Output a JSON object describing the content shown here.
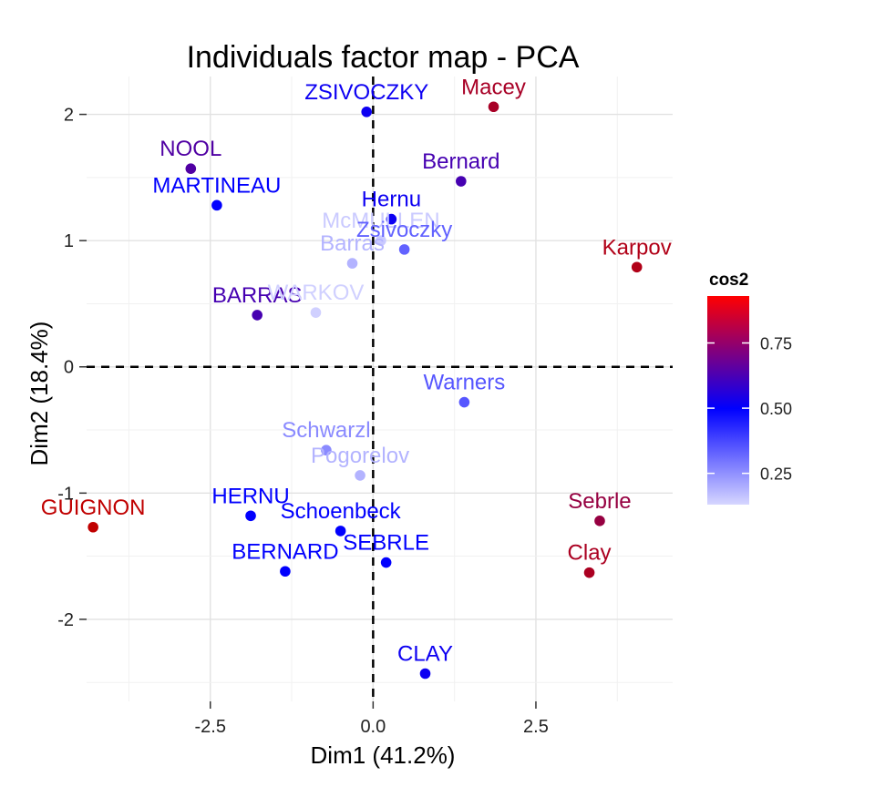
{
  "chart_data": {
    "type": "scatter",
    "title": "Individuals factor map - PCA",
    "xlabel": "Dim1 (41.2%)",
    "ylabel": "Dim2 (18.4%)",
    "xlim": [
      -4.4,
      4.6
    ],
    "ylim": [
      -2.65,
      2.3
    ],
    "xticks": [
      -2.5,
      0.0,
      2.5
    ],
    "xtick_labels": [
      "-2.5",
      "0.0",
      "2.5"
    ],
    "yticks": [
      -2,
      -1,
      0,
      1,
      2
    ],
    "ytick_labels": [
      "-2",
      "-1",
      "0",
      "1",
      "2"
    ],
    "grid": true,
    "reference_lines": [
      {
        "axis": "x",
        "value": 0,
        "style": "dashed"
      },
      {
        "axis": "y",
        "value": 0,
        "style": "dashed"
      }
    ],
    "color_scale": {
      "name": "cos2",
      "min": 0.13,
      "max": 0.93,
      "ticks": [
        0.25,
        0.5,
        0.75
      ],
      "tick_labels": [
        "0.25",
        "0.50",
        "0.75"
      ],
      "colors": [
        "#d6d6ff",
        "#0000ff",
        "#ff0000"
      ]
    },
    "legend_position": "right",
    "points": [
      {
        "label": "ZSIVOCZKY",
        "x": -0.1,
        "y": 2.02,
        "cos2": 0.52
      },
      {
        "label": "Macey",
        "x": 1.85,
        "y": 2.06,
        "cos2": 0.85
      },
      {
        "label": "NOOL",
        "x": -2.8,
        "y": 1.57,
        "cos2": 0.64
      },
      {
        "label": "Bernard",
        "x": 1.35,
        "y": 1.47,
        "cos2": 0.62
      },
      {
        "label": "MARTINEAU",
        "x": -2.4,
        "y": 1.28,
        "cos2": 0.5
      },
      {
        "label": "Hernu",
        "x": 0.28,
        "y": 1.17,
        "cos2": 0.52
      },
      {
        "label": "McMULLEN",
        "x": 0.12,
        "y": 1.0,
        "cos2": 0.15
      },
      {
        "label": "Zsivoczky",
        "x": 0.48,
        "y": 0.93,
        "cos2": 0.33
      },
      {
        "label": "Barras",
        "x": -0.32,
        "y": 0.82,
        "cos2": 0.19
      },
      {
        "label": "Karpov",
        "x": 4.05,
        "y": 0.79,
        "cos2": 0.88
      },
      {
        "label": "BARRAS",
        "x": -1.78,
        "y": 0.41,
        "cos2": 0.62
      },
      {
        "label": "WARKOV",
        "x": -0.88,
        "y": 0.43,
        "cos2": 0.14
      },
      {
        "label": "Warners",
        "x": 1.4,
        "y": -0.28,
        "cos2": 0.35
      },
      {
        "label": "Schwarzl",
        "x": -0.72,
        "y": -0.66,
        "cos2": 0.26
      },
      {
        "label": "Pogorelov",
        "x": -0.2,
        "y": -0.86,
        "cos2": 0.19
      },
      {
        "label": "GUIGNON",
        "x": -4.3,
        "y": -1.27,
        "cos2": 0.93
      },
      {
        "label": "HERNU",
        "x": -1.88,
        "y": -1.18,
        "cos2": 0.5
      },
      {
        "label": "Schoenbeck",
        "x": -0.5,
        "y": -1.3,
        "cos2": 0.5
      },
      {
        "label": "SEBRLE",
        "x": 0.2,
        "y": -1.55,
        "cos2": 0.5
      },
      {
        "label": "BERNARD",
        "x": -1.35,
        "y": -1.62,
        "cos2": 0.5
      },
      {
        "label": "Sebrle",
        "x": 3.48,
        "y": -1.22,
        "cos2": 0.8
      },
      {
        "label": "Clay",
        "x": 3.32,
        "y": -1.63,
        "cos2": 0.86
      },
      {
        "label": "CLAY",
        "x": 0.8,
        "y": -2.43,
        "cos2": 0.52
      }
    ]
  }
}
